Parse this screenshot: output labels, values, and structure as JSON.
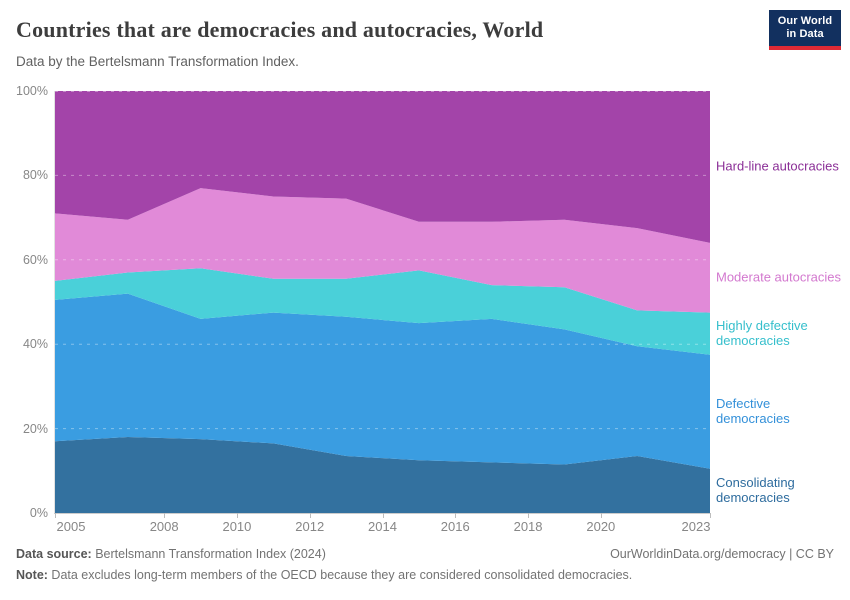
{
  "header": {
    "title": "Countries that are democracies and autocracies, World",
    "subtitle": "Data by the Bertelsmann Transformation Index.",
    "logo": {
      "line1": "Our World",
      "line2": "in Data",
      "bg_color": "#12305f",
      "accent_color": "#df2a35"
    }
  },
  "chart_data": {
    "type": "area",
    "stacked": true,
    "unit": "%",
    "x": [
      2005,
      2007,
      2009,
      2011,
      2013,
      2015,
      2017,
      2019,
      2021,
      2023
    ],
    "series": [
      {
        "name": "Consolidating democracies",
        "color": "#33719f",
        "label_color": "#2e6c9e",
        "values": [
          17,
          18,
          17.5,
          16.5,
          13.5,
          12.5,
          12,
          11.5,
          13.5,
          10.5
        ]
      },
      {
        "name": "Defective democracies",
        "color": "#3a9de1",
        "label_color": "#3390d9",
        "values": [
          33.5,
          34,
          28.5,
          31,
          33,
          32.5,
          34,
          32,
          26,
          27
        ]
      },
      {
        "name": "Highly defective democracies",
        "color": "#4ad0d9",
        "label_color": "#35bfcc",
        "values": [
          4.5,
          5,
          12,
          8,
          9,
          12.5,
          8,
          10,
          8.5,
          10
        ]
      },
      {
        "name": "Moderate autocracies",
        "color": "#e18ad8",
        "label_color": "#d379cf",
        "values": [
          16,
          12.5,
          19,
          19.5,
          19,
          11.5,
          15,
          16,
          19.5,
          16.5
        ]
      },
      {
        "name": "Hard-line autocracies",
        "color": "#a344a9",
        "label_color": "#8b2f97",
        "values": [
          29,
          30.5,
          23,
          25,
          25.5,
          31,
          31,
          30.5,
          32.5,
          36
        ]
      }
    ],
    "xticks": [
      2005,
      2008,
      2010,
      2012,
      2014,
      2016,
      2018,
      2020,
      2023
    ],
    "yticks": [
      "0%",
      "20%",
      "40%",
      "60%",
      "80%",
      "100%"
    ],
    "xlim": [
      2005,
      2023
    ],
    "ylim": [
      0,
      100
    ],
    "grid": "dashed",
    "legend_position": "right"
  },
  "footer": {
    "source_label": "Data source:",
    "source_text": " Bertelsmann Transformation Index (2024)",
    "link_text": "OurWorldinData.org/democracy | CC BY",
    "note_label": "Note:",
    "note_text": " Data excludes long-term members of the OECD because they are considered consolidated democracies."
  }
}
